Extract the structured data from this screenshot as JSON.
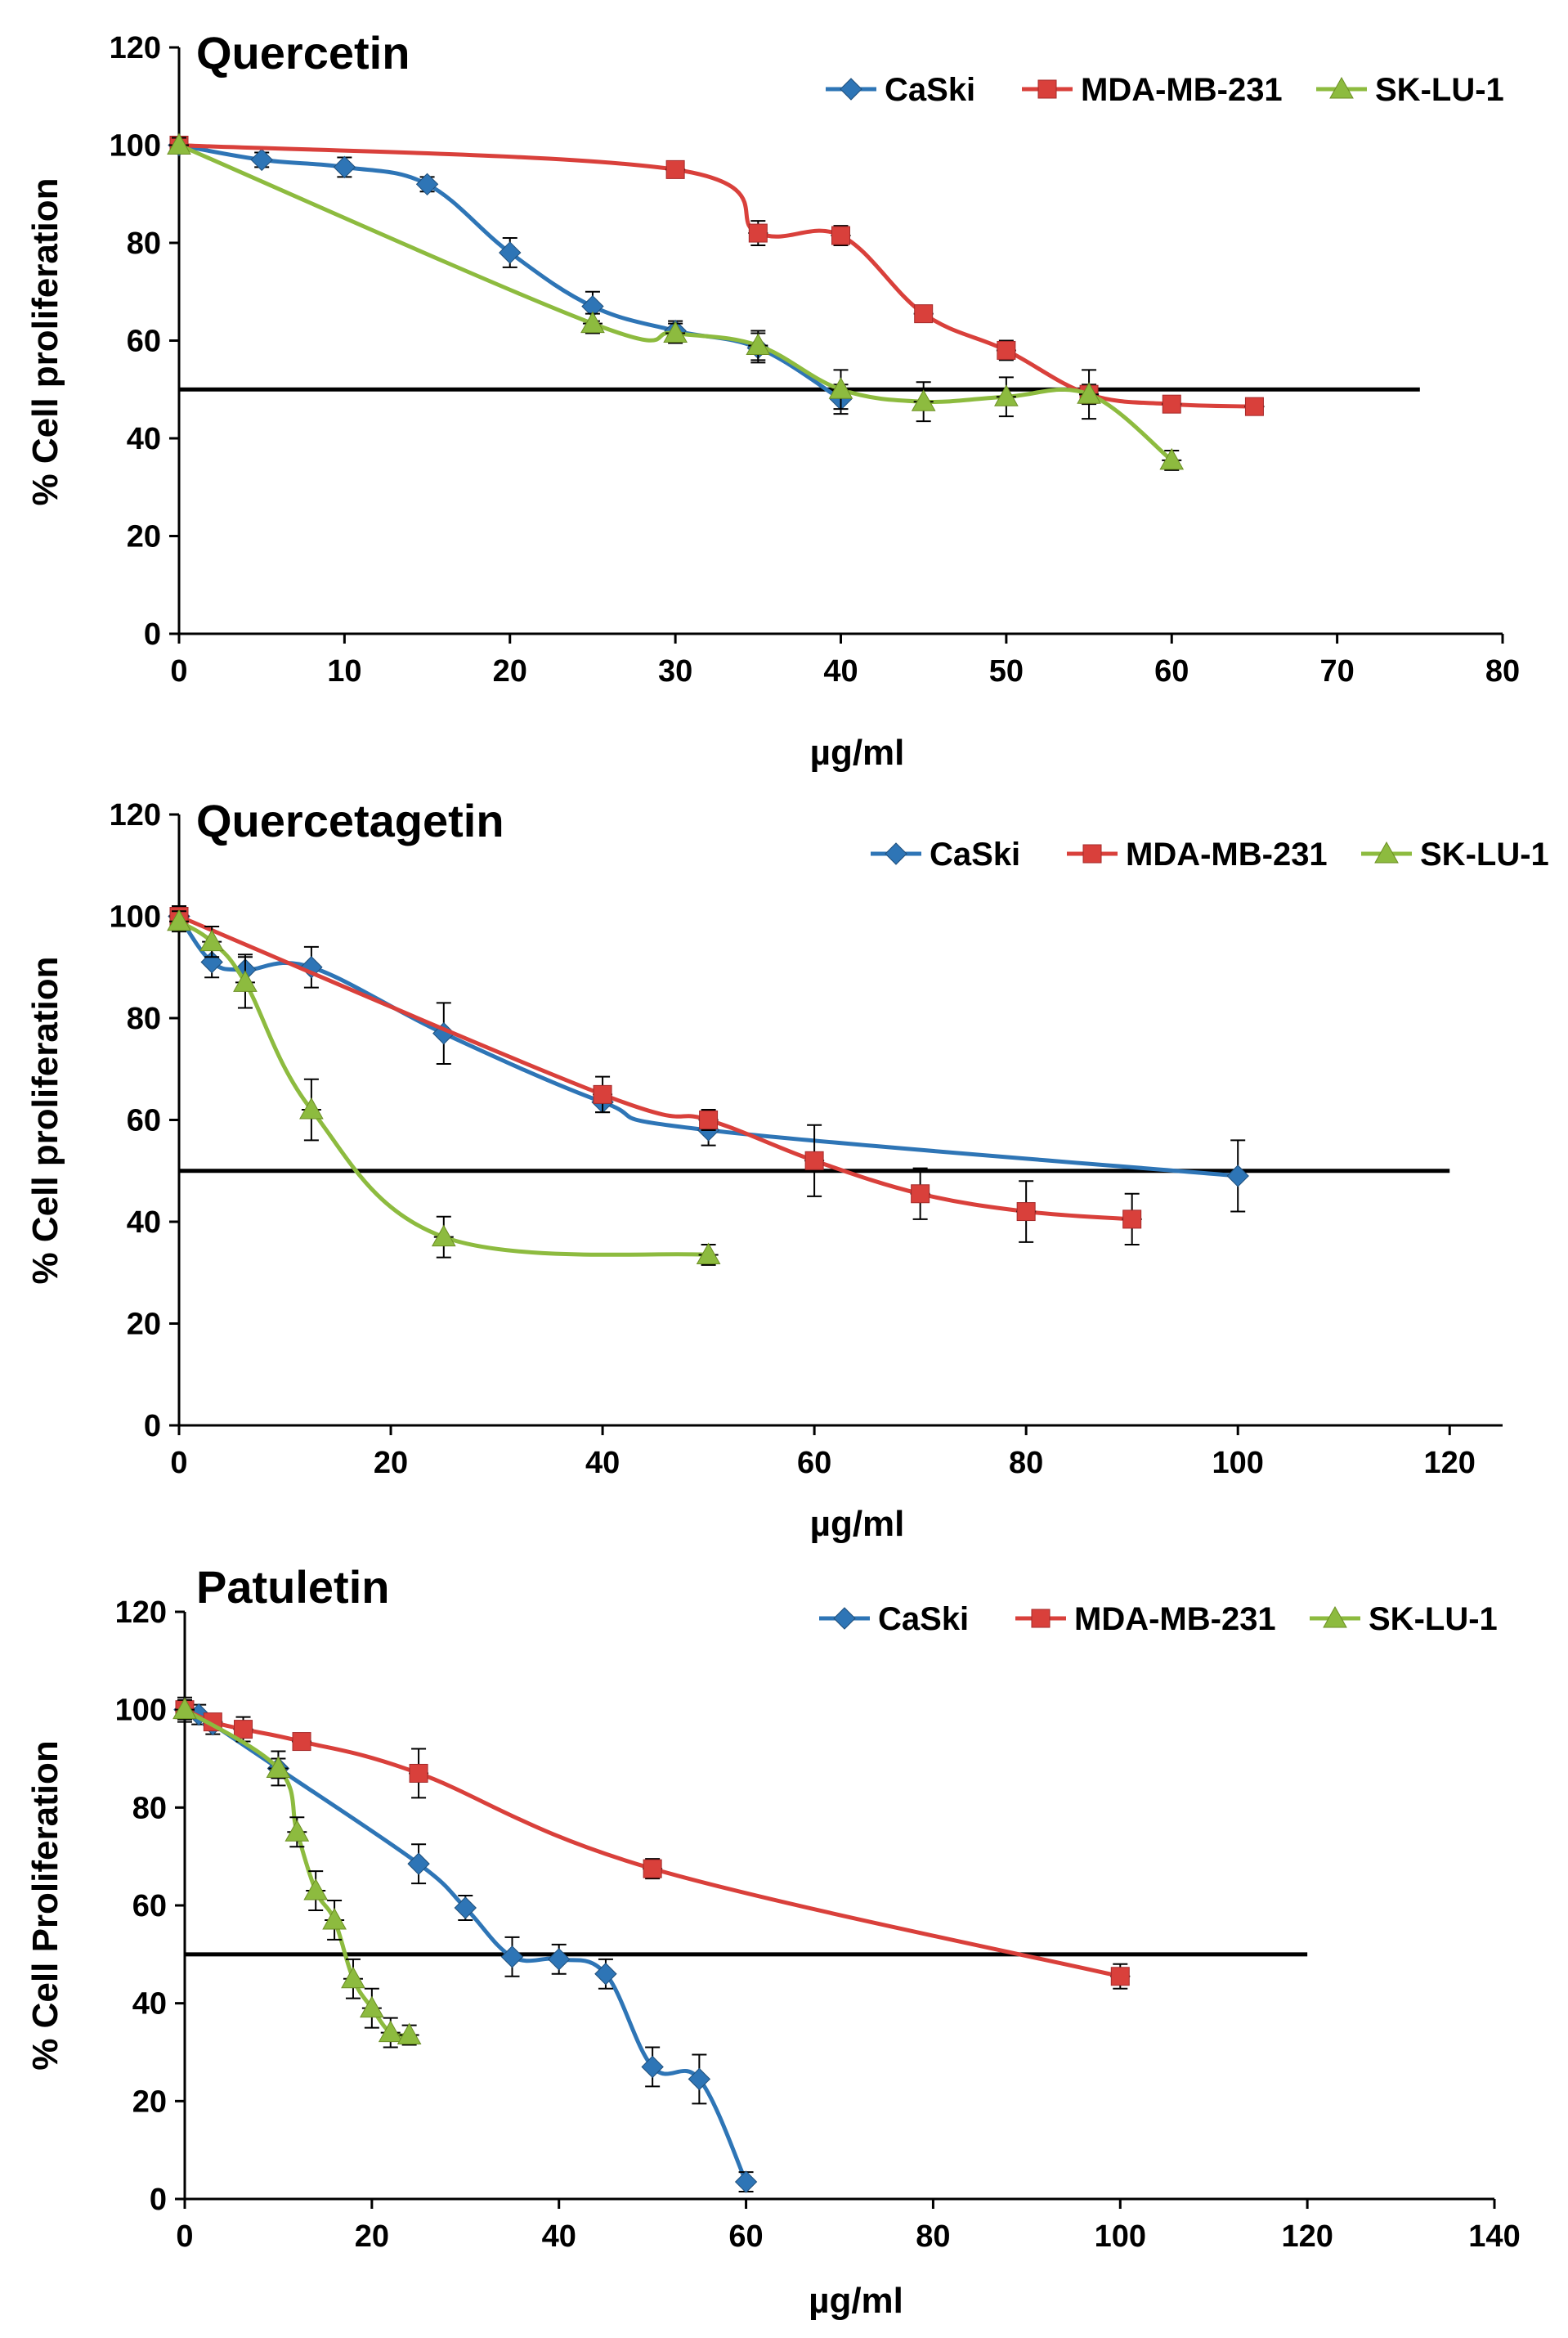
{
  "chart_data": [
    {
      "type": "line",
      "title": "Quercetin",
      "xlabel": "µg/ml",
      "ylabel": "% Cell proliferation",
      "xlim": [
        0,
        80
      ],
      "ylim": [
        0,
        120
      ],
      "xticks": [
        0,
        10,
        20,
        30,
        40,
        50,
        60,
        70,
        80
      ],
      "yticks": [
        0,
        20,
        40,
        60,
        80,
        100,
        120
      ],
      "reference_line": {
        "y": 50,
        "x_from": 0,
        "x_to": 75
      },
      "legend_position": "top-right",
      "series": [
        {
          "name": "CaSki",
          "color": "#2e75b6",
          "marker": "diamond",
          "x": [
            0,
            5,
            10,
            15,
            20,
            25,
            30,
            35,
            40
          ],
          "y": [
            100,
            97,
            95.5,
            92,
            78,
            67,
            62,
            58.5,
            48
          ],
          "err": [
            1.5,
            1.5,
            2,
            1.5,
            3,
            3,
            2,
            3,
            3
          ]
        },
        {
          "name": "MDA-MB-231",
          "color": "#d9403b",
          "marker": "square",
          "x": [
            0,
            30,
            35,
            40,
            45,
            50,
            55,
            60,
            65
          ],
          "y": [
            100,
            95,
            82,
            81.5,
            65.5,
            58,
            49,
            47,
            46.5
          ],
          "err": [
            1.5,
            1.5,
            2.5,
            2,
            1.5,
            2,
            2,
            1.5,
            1.5
          ]
        },
        {
          "name": "SK-LU-1",
          "color": "#8dbb3f",
          "marker": "triangle",
          "x": [
            0,
            25,
            30,
            35,
            40,
            45,
            50,
            55,
            60
          ],
          "y": [
            100,
            63.5,
            61.5,
            59,
            50,
            47.5,
            48.5,
            49,
            35.5
          ],
          "err": [
            1.5,
            2,
            2,
            3,
            4,
            4,
            4,
            5,
            2
          ]
        }
      ]
    },
    {
      "type": "line",
      "title": "Quercetagetin",
      "xlabel": "µg/ml",
      "ylabel": "% Cell proliferation",
      "xlim": [
        0,
        125
      ],
      "ylim": [
        0,
        120
      ],
      "xticks": [
        0,
        20,
        40,
        60,
        80,
        100,
        120
      ],
      "yticks": [
        0,
        20,
        40,
        60,
        80,
        100,
        120
      ],
      "reference_line": {
        "y": 50,
        "x_from": 0,
        "x_to": 120
      },
      "legend_position": "top-right",
      "series": [
        {
          "name": "CaSki",
          "color": "#2e75b6",
          "marker": "diamond",
          "x": [
            0,
            3.1,
            6.25,
            12.5,
            25,
            40,
            50,
            100
          ],
          "y": [
            100,
            91,
            89.5,
            90,
            77,
            63.5,
            58,
            49
          ],
          "err": [
            2,
            3,
            3,
            4,
            6,
            2,
            3,
            7
          ]
        },
        {
          "name": "MDA-MB-231",
          "color": "#d9403b",
          "marker": "square",
          "x": [
            0,
            40,
            50,
            60,
            70,
            80,
            90
          ],
          "y": [
            100,
            65,
            60,
            52,
            45.5,
            42,
            40.5
          ],
          "err": [
            2,
            3.5,
            2,
            7,
            5,
            6,
            5
          ]
        },
        {
          "name": "SK-LU-1",
          "color": "#8dbb3f",
          "marker": "triangle",
          "x": [
            0,
            3.1,
            6.25,
            12.5,
            25,
            50
          ],
          "y": [
            99,
            95,
            87,
            62,
            37,
            33.5
          ],
          "err": [
            2,
            3,
            5,
            6,
            4,
            2
          ]
        }
      ]
    },
    {
      "type": "line",
      "title": "Patuletin",
      "xlabel": "µg/ml",
      "ylabel": "% Cell Proliferation",
      "xlim": [
        0,
        140
      ],
      "ylim": [
        0,
        120
      ],
      "xticks": [
        0,
        20,
        40,
        60,
        80,
        100,
        120,
        140
      ],
      "yticks": [
        0,
        20,
        40,
        60,
        80,
        100,
        120
      ],
      "reference_line": {
        "y": 50,
        "x_from": 0,
        "x_to": 120
      },
      "legend_position": "top-right",
      "series": [
        {
          "name": "CaSki",
          "color": "#2e75b6",
          "marker": "diamond",
          "x": [
            0,
            1.5,
            3,
            10,
            25,
            30,
            35,
            40,
            45,
            50,
            55,
            60
          ],
          "y": [
            100,
            99,
            97,
            88,
            68.5,
            59.5,
            49.5,
            49,
            46,
            27,
            24.5,
            3.5
          ],
          "err": [
            2.5,
            2,
            2,
            3.5,
            4,
            2.5,
            4,
            3,
            3,
            4,
            5,
            2
          ]
        },
        {
          "name": "MDA-MB-231",
          "color": "#d9403b",
          "marker": "square",
          "x": [
            0,
            3,
            6.25,
            12.5,
            25,
            50,
            100
          ],
          "y": [
            100,
            97.5,
            96,
            93.5,
            87,
            67.5,
            45.5
          ],
          "err": [
            1.5,
            1.5,
            2.5,
            1.5,
            5,
            2,
            2.5
          ]
        },
        {
          "name": "SK-LU-1",
          "color": "#8dbb3f",
          "marker": "triangle",
          "x": [
            0,
            10,
            12,
            14,
            16,
            18,
            20,
            22,
            24
          ],
          "y": [
            100,
            88,
            75,
            63,
            57,
            45,
            39,
            34,
            33.5
          ],
          "err": [
            2,
            2,
            3,
            4,
            4,
            4,
            4,
            3,
            2
          ]
        }
      ]
    }
  ]
}
